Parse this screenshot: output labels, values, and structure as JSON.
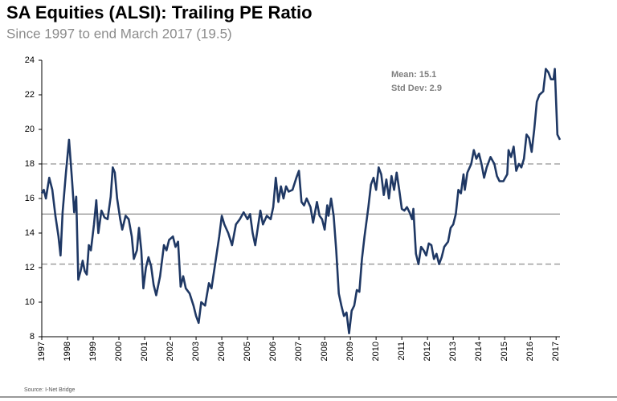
{
  "chart_data": {
    "type": "line",
    "title": "SA Equities (ALSI): Trailing PE Ratio",
    "subtitle": "Since 1997 to end March 2017 (19.5)",
    "annotations": [
      "Mean: 15.1",
      "Std Dev: 2.9"
    ],
    "source": "Source: I-Net Bridge",
    "xlim": [
      1997,
      2017.15
    ],
    "xticks": [
      1997,
      1998,
      1999,
      2000,
      2001,
      2002,
      2003,
      2004,
      2005,
      2006,
      2007,
      2008,
      2009,
      2010,
      2011,
      2012,
      2013,
      2014,
      2015,
      2016,
      2017
    ],
    "ylim": [
      8,
      24
    ],
    "yticks": [
      8,
      10,
      12,
      14,
      16,
      18,
      20,
      22,
      24
    ],
    "reference_lines": [
      {
        "value": 18.0,
        "style": "dashed",
        "color": "#a6a6a6"
      },
      {
        "value": 15.1,
        "style": "solid",
        "color": "#8c8c8c"
      },
      {
        "value": 12.2,
        "style": "dashed",
        "color": "#a6a6a6"
      }
    ],
    "series": [
      {
        "color": "#1f3864",
        "x": [
          1997.0,
          1997.08,
          1997.16,
          1997.29,
          1997.41,
          1997.53,
          1997.65,
          1997.73,
          1997.81,
          1997.94,
          1998.06,
          1998.18,
          1998.26,
          1998.34,
          1998.42,
          1998.51,
          1998.59,
          1998.67,
          1998.75,
          1998.83,
          1998.91,
          1999.03,
          1999.12,
          1999.2,
          1999.32,
          1999.44,
          1999.56,
          1999.68,
          1999.76,
          1999.84,
          1999.93,
          2000.05,
          2000.13,
          2000.26,
          2000.38,
          2000.5,
          2000.58,
          2000.7,
          2000.78,
          2000.87,
          2000.95,
          2001.05,
          2001.15,
          2001.25,
          2001.35,
          2001.45,
          2001.6,
          2001.75,
          2001.85,
          2001.95,
          2002.1,
          2002.2,
          2002.3,
          2002.4,
          2002.5,
          2002.6,
          2002.75,
          2002.9,
          2003.0,
          2003.1,
          2003.2,
          2003.35,
          2003.5,
          2003.6,
          2003.75,
          2003.9,
          2004.0,
          2004.1,
          2004.25,
          2004.4,
          2004.55,
          2004.7,
          2004.85,
          2005.0,
          2005.1,
          2005.2,
          2005.3,
          2005.4,
          2005.5,
          2005.6,
          2005.75,
          2005.9,
          2006.0,
          2006.1,
          2006.2,
          2006.3,
          2006.4,
          2006.5,
          2006.6,
          2006.75,
          2006.9,
          2007.0,
          2007.1,
          2007.2,
          2007.3,
          2007.45,
          2007.55,
          2007.7,
          2007.8,
          2007.9,
          2008.0,
          2008.1,
          2008.15,
          2008.25,
          2008.35,
          2008.45,
          2008.55,
          2008.65,
          2008.75,
          2008.85,
          2008.95,
          2009.05,
          2009.15,
          2009.25,
          2009.35,
          2009.45,
          2009.55,
          2009.7,
          2009.8,
          2009.9,
          2010.0,
          2010.1,
          2010.2,
          2010.3,
          2010.4,
          2010.5,
          2010.6,
          2010.7,
          2010.8,
          2010.9,
          2011.0,
          2011.1,
          2011.2,
          2011.3,
          2011.4,
          2011.45,
          2011.55,
          2011.65,
          2011.75,
          2011.85,
          2011.95,
          2012.05,
          2012.15,
          2012.25,
          2012.35,
          2012.45,
          2012.55,
          2012.65,
          2012.8,
          2012.9,
          2013.0,
          2013.1,
          2013.2,
          2013.3,
          2013.4,
          2013.45,
          2013.55,
          2013.7,
          2013.8,
          2013.9,
          2014.0,
          2014.1,
          2014.2,
          2014.3,
          2014.45,
          2014.6,
          2014.7,
          2014.8,
          2014.95,
          2015.1,
          2015.15,
          2015.25,
          2015.35,
          2015.45,
          2015.55,
          2015.65,
          2015.75,
          2015.85,
          2015.95,
          2016.05,
          2016.15,
          2016.25,
          2016.35,
          2016.5,
          2016.6,
          2016.7,
          2016.8,
          2016.9,
          2016.95,
          2017.05,
          2017.15
        ],
        "values": [
          16.3,
          16.5,
          16.0,
          17.2,
          16.5,
          15.0,
          13.8,
          12.7,
          15.2,
          17.5,
          19.4,
          17.0,
          15.2,
          16.1,
          11.3,
          11.8,
          12.4,
          11.8,
          11.6,
          13.3,
          13.0,
          14.5,
          15.9,
          14.0,
          15.3,
          14.9,
          14.8,
          16.1,
          17.8,
          17.5,
          16.0,
          14.8,
          14.2,
          15.0,
          14.8,
          13.8,
          12.5,
          13.0,
          14.3,
          13.0,
          10.8,
          12.0,
          12.6,
          12.1,
          11.0,
          10.4,
          11.5,
          13.3,
          13.0,
          13.6,
          13.8,
          13.2,
          13.5,
          10.9,
          11.5,
          10.8,
          10.5,
          9.8,
          9.2,
          8.8,
          10.0,
          9.8,
          11.1,
          10.8,
          12.3,
          13.8,
          15.0,
          14.5,
          14.0,
          13.3,
          14.5,
          14.8,
          15.2,
          14.8,
          15.1,
          14.0,
          13.3,
          14.3,
          15.3,
          14.5,
          15.0,
          14.8,
          15.5,
          17.2,
          15.8,
          16.7,
          16.0,
          16.7,
          16.4,
          16.5,
          17.2,
          17.6,
          15.8,
          15.6,
          16.0,
          15.5,
          14.6,
          15.8,
          15.0,
          14.8,
          14.2,
          15.6,
          15.0,
          16.0,
          15.0,
          13.0,
          10.5,
          9.8,
          9.2,
          9.4,
          8.2,
          9.5,
          9.8,
          10.7,
          10.6,
          12.5,
          13.8,
          15.5,
          16.8,
          17.2,
          16.5,
          17.8,
          17.4,
          16.2,
          17.1,
          16.0,
          17.3,
          16.5,
          17.5,
          16.5,
          15.4,
          15.3,
          15.5,
          15.2,
          14.8,
          15.4,
          12.8,
          12.2,
          13.2,
          13.0,
          12.7,
          13.4,
          13.3,
          12.5,
          12.8,
          12.2,
          12.6,
          13.2,
          13.5,
          14.3,
          14.5,
          15.1,
          16.5,
          16.3,
          17.4,
          16.5,
          17.5,
          18.0,
          18.8,
          18.3,
          18.6,
          18.0,
          17.2,
          17.8,
          18.4,
          18.0,
          17.3,
          17.0,
          17.0,
          17.4,
          18.8,
          18.4,
          19.0,
          17.6,
          18.0,
          17.8,
          18.3,
          19.7,
          19.5,
          18.7,
          20.0,
          21.6,
          22.0,
          22.2,
          23.5,
          23.3,
          22.9,
          22.9,
          23.5,
          19.7,
          19.4
        ]
      }
    ]
  }
}
